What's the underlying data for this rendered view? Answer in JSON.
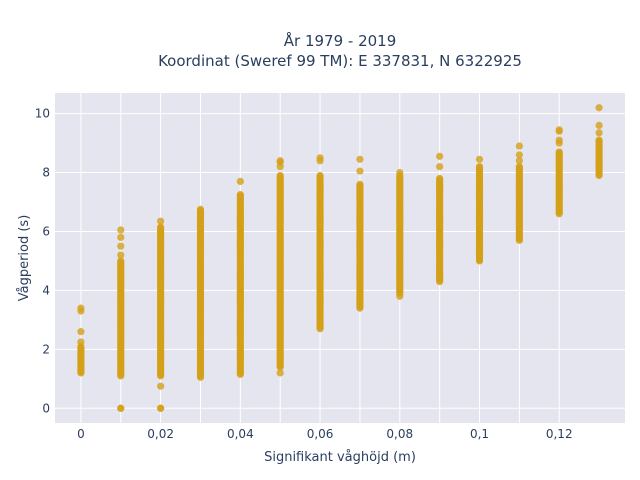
{
  "chart_data": {
    "type": "scatter",
    "title_line1": "År 1979 - 2019",
    "title_line2": "Koordinat (Sweref 99 TM): E 337831, N 6322925",
    "xlabel": "Signifikant våghöjd (m)",
    "ylabel": "Vågperiod (s)",
    "xlim": [
      -0.0065,
      0.1365
    ],
    "ylim": [
      -0.5,
      10.7
    ],
    "x_ticks": [
      0,
      0.01,
      0.02,
      0.03,
      0.04,
      0.05,
      0.06,
      0.07,
      0.08,
      0.09,
      0.1,
      0.11,
      0.12
    ],
    "x_tick_labels": [
      "0",
      "",
      "0,02",
      "",
      "0,04",
      "",
      "0,06",
      "",
      "0,08",
      "",
      "0,1",
      "",
      "0,12"
    ],
    "y_ticks": [
      0,
      2,
      4,
      6,
      8,
      10
    ],
    "y_tick_labels": [
      "0",
      "2",
      "4",
      "6",
      "8",
      "10"
    ],
    "marker_color": "#d4a017",
    "plot_bg": "#e5e5ef",
    "grid": true,
    "series": [
      {
        "groups": [
          {
            "x": 0,
            "dense": [
              1.2,
              2.1
            ],
            "extra": [
              2.25,
              2.6,
              3.3,
              3.4
            ]
          },
          {
            "x": 0.01,
            "dense": [
              1.1,
              5.0
            ],
            "extra": [
              0,
              0,
              5.2,
              5.5,
              5.8,
              6.05
            ]
          },
          {
            "x": 0.02,
            "dense": [
              1.1,
              6.15
            ],
            "extra": [
              0,
              0,
              0.75,
              6.35
            ]
          },
          {
            "x": 0.03,
            "dense": [
              1.05,
              6.75
            ],
            "extra": []
          },
          {
            "x": 0.04,
            "dense": [
              1.15,
              7.25
            ],
            "extra": [
              7.7
            ]
          },
          {
            "x": 0.05,
            "dense": [
              1.4,
              7.9
            ],
            "extra": [
              1.2,
              8.2,
              8.35,
              8.4
            ]
          },
          {
            "x": 0.06,
            "dense": [
              2.7,
              7.9
            ],
            "extra": [
              8.4,
              8.5
            ]
          },
          {
            "x": 0.07,
            "dense": [
              3.4,
              7.6
            ],
            "extra": [
              8.05,
              8.45
            ]
          },
          {
            "x": 0.08,
            "dense": [
              3.9,
              7.9
            ],
            "extra": [
              3.8,
              8.0
            ]
          },
          {
            "x": 0.09,
            "dense": [
              4.3,
              7.8
            ],
            "extra": [
              8.2,
              8.55
            ]
          },
          {
            "x": 0.1,
            "dense": [
              5.0,
              8.2
            ],
            "extra": [
              8.45
            ]
          },
          {
            "x": 0.11,
            "dense": [
              5.7,
              8.2
            ],
            "extra": [
              8.4,
              8.6,
              8.9
            ]
          },
          {
            "x": 0.12,
            "dense": [
              6.6,
              8.7
            ],
            "extra": [
              9.0,
              9.1,
              9.4,
              9.45
            ]
          },
          {
            "x": 0.13,
            "dense": [
              7.9,
              9.1
            ],
            "extra": [
              9.35,
              9.6,
              10.2
            ]
          }
        ]
      }
    ]
  }
}
